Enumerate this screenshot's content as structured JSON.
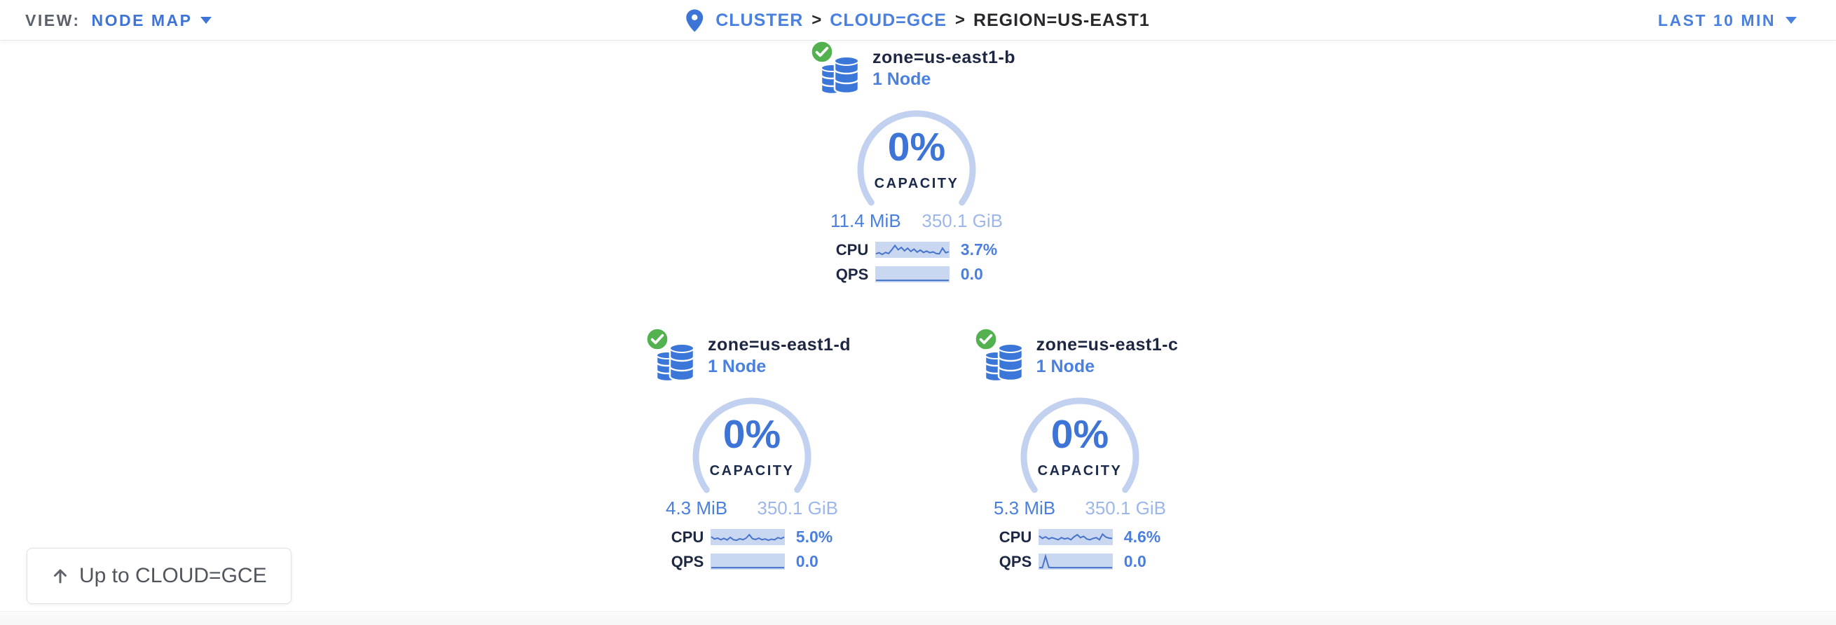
{
  "topbar": {
    "view_label": "VIEW:",
    "view_value": "NODE MAP",
    "breadcrumb": {
      "separator": ">",
      "items": [
        {
          "label": "CLUSTER"
        },
        {
          "label": "CLOUD=GCE"
        },
        {
          "label": "REGION=US-EAST1"
        }
      ]
    },
    "time_range": "LAST 10 MIN"
  },
  "zones": [
    {
      "title": "zone=us-east1-b",
      "node_count": "1 Node",
      "status": "healthy",
      "capacity_pct": "0%",
      "capacity_label": "CAPACITY",
      "capacity_used": "11.4 MiB",
      "capacity_total": "350.1 GiB",
      "cpu_label": "CPU",
      "cpu_value": "3.7%",
      "qps_label": "QPS",
      "qps_value": "0.0",
      "cpu_spark": [
        0.2,
        0.28,
        0.15,
        0.3,
        0.22,
        0.5,
        0.82,
        0.5,
        0.68,
        0.42,
        0.62,
        0.38,
        0.55,
        0.32,
        0.48,
        0.3,
        0.4,
        0.28,
        0.34,
        0.22,
        0.2,
        0.62,
        0.28,
        0.35
      ],
      "qps_spark": [
        0.05,
        0.05,
        0.05,
        0.05,
        0.05,
        0.05,
        0.05,
        0.05,
        0.05,
        0.05,
        0.05,
        0.05,
        0.05,
        0.05,
        0.05,
        0.05,
        0.05,
        0.05,
        0.05,
        0.05,
        0.05,
        0.05,
        0.05,
        0.05
      ]
    },
    {
      "title": "zone=us-east1-d",
      "node_count": "1 Node",
      "status": "healthy",
      "capacity_pct": "0%",
      "capacity_label": "CAPACITY",
      "capacity_used": "4.3 MiB",
      "capacity_total": "350.1 GiB",
      "cpu_label": "CPU",
      "cpu_value": "5.0%",
      "qps_label": "QPS",
      "qps_value": "0.0",
      "cpu_spark": [
        0.52,
        0.35,
        0.42,
        0.3,
        0.4,
        0.28,
        0.48,
        0.3,
        0.26,
        0.38,
        0.3,
        0.42,
        0.68,
        0.38,
        0.32,
        0.42,
        0.3,
        0.36,
        0.26,
        0.34,
        0.3,
        0.46,
        0.38,
        0.5
      ],
      "qps_spark": [
        0.05,
        0.05,
        0.05,
        0.05,
        0.05,
        0.05,
        0.05,
        0.05,
        0.05,
        0.05,
        0.05,
        0.05,
        0.05,
        0.05,
        0.05,
        0.05,
        0.05,
        0.05,
        0.05,
        0.05,
        0.05,
        0.05,
        0.05,
        0.05
      ]
    },
    {
      "title": "zone=us-east1-c",
      "node_count": "1 Node",
      "status": "healthy",
      "capacity_pct": "0%",
      "capacity_label": "CAPACITY",
      "capacity_used": "5.3 MiB",
      "capacity_total": "350.1 GiB",
      "cpu_label": "CPU",
      "cpu_value": "4.6%",
      "qps_label": "QPS",
      "qps_value": "0.0",
      "cpu_spark": [
        0.58,
        0.4,
        0.52,
        0.36,
        0.46,
        0.38,
        0.3,
        0.46,
        0.36,
        0.42,
        0.3,
        0.52,
        0.68,
        0.46,
        0.56,
        0.36,
        0.3,
        0.4,
        0.46,
        0.3,
        0.72,
        0.5,
        0.42,
        0.4
      ],
      "qps_spark": [
        0.05,
        0.05,
        0.9,
        0.07,
        0.05,
        0.05,
        0.05,
        0.05,
        0.05,
        0.05,
        0.05,
        0.05,
        0.05,
        0.05,
        0.05,
        0.05,
        0.05,
        0.05,
        0.05,
        0.05,
        0.05,
        0.05,
        0.05,
        0.05
      ]
    }
  ],
  "up_button": {
    "label": "Up to CLOUD=GCE"
  },
  "colors": {
    "accent_blue": "#3d74d6",
    "link_blue": "#4a80df",
    "gauge_arc": "#c2d1ef",
    "spark_bg": "#c9d7f1",
    "spark_line": "#4673cb",
    "value_blue": "#4a7fdd",
    "total_blue": "#9db7ea",
    "status_green": "#53b14f",
    "db_icon_blue": "#3b77d8"
  }
}
